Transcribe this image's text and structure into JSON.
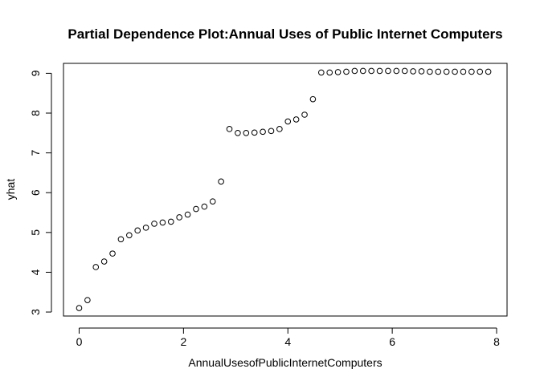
{
  "chart_data": {
    "type": "scatter",
    "title": "Partial Dependence Plot:Annual Uses of Public Internet Computers",
    "xlabel": "AnnualUsesofPublicInternetComputers",
    "ylabel": "yhat",
    "xlim": [
      -0.3,
      8.2
    ],
    "ylim": [
      2.9,
      9.25
    ],
    "xticks": [
      0,
      2,
      4,
      6,
      8
    ],
    "yticks": [
      3,
      4,
      5,
      6,
      7,
      8,
      9
    ],
    "grid": false,
    "marker": "open-circle",
    "x": [
      0.0,
      0.16,
      0.32,
      0.48,
      0.64,
      0.8,
      0.96,
      1.12,
      1.28,
      1.44,
      1.6,
      1.76,
      1.92,
      2.08,
      2.24,
      2.4,
      2.56,
      2.72,
      2.88,
      3.04,
      3.2,
      3.36,
      3.52,
      3.68,
      3.84,
      4.0,
      4.16,
      4.32,
      4.48,
      4.64,
      4.8,
      4.96,
      5.12,
      5.28,
      5.44,
      5.6,
      5.76,
      5.92,
      6.08,
      6.24,
      6.4,
      6.56,
      6.72,
      6.88,
      7.04,
      7.2,
      7.36,
      7.52,
      7.68,
      7.84
    ],
    "y": [
      3.1,
      3.3,
      4.13,
      4.27,
      4.47,
      4.83,
      4.93,
      5.05,
      5.12,
      5.22,
      5.25,
      5.27,
      5.38,
      5.45,
      5.59,
      5.65,
      5.78,
      6.28,
      7.6,
      7.5,
      7.5,
      7.51,
      7.53,
      7.55,
      7.6,
      7.79,
      7.84,
      7.96,
      8.35,
      9.02,
      9.02,
      9.03,
      9.04,
      9.06,
      9.06,
      9.06,
      9.06,
      9.06,
      9.06,
      9.06,
      9.05,
      9.05,
      9.04,
      9.04,
      9.04,
      9.04,
      9.04,
      9.04,
      9.04,
      9.04
    ]
  }
}
